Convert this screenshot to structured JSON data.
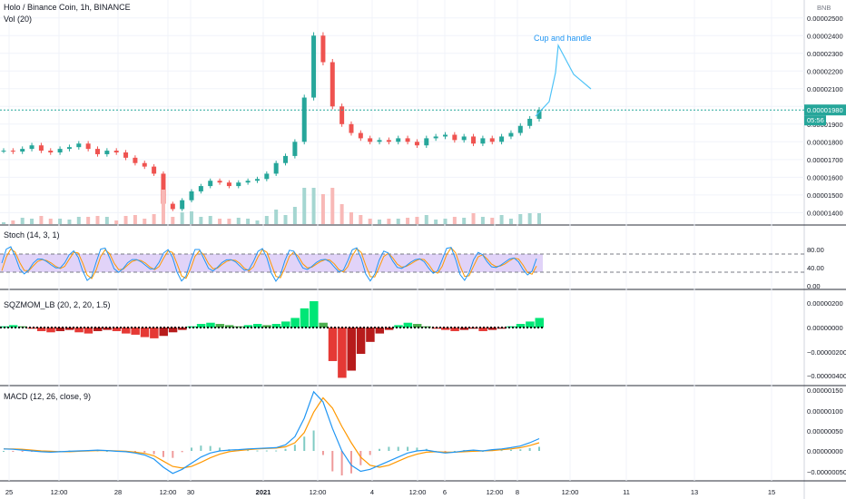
{
  "chart_data": {
    "type": "candlestick",
    "symbol_title": "Holo / Binance Coin, 1h, BINANCE",
    "volume_label": "Vol (20)",
    "quote_currency": "BNB",
    "price_axis": {
      "ticks": [
        "0.00002500",
        "0.00002400",
        "0.00002300",
        "0.00002200",
        "0.00002100",
        "0.00002000",
        "0.00001900",
        "0.00001800",
        "0.00001700",
        "0.00001600",
        "0.00001500",
        "0.00001400"
      ],
      "current_price": "0.00001980",
      "countdown": "05:56"
    },
    "annotation": {
      "text": "Cup and handle",
      "color": "#2196f3"
    },
    "close_series": [
      1.75e-05,
      1.745e-05,
      1.76e-05,
      1.78e-05,
      1.75e-05,
      1.74e-05,
      1.76e-05,
      1.77e-05,
      1.79e-05,
      1.76e-05,
      1.73e-05,
      1.75e-05,
      1.74e-05,
      1.71e-05,
      1.68e-05,
      1.66e-05,
      1.62e-05,
      1.45e-05,
      1.42e-05,
      1.47e-05,
      1.52e-05,
      1.55e-05,
      1.58e-05,
      1.57e-05,
      1.55e-05,
      1.57e-05,
      1.58e-05,
      1.59e-05,
      1.62e-05,
      1.68e-05,
      1.72e-05,
      1.8e-05,
      2.05e-05,
      2.4e-05,
      2.25e-05,
      2e-05,
      1.9e-05,
      1.85e-05,
      1.82e-05,
      1.8e-05,
      1.81e-05,
      1.8e-05,
      1.82e-05,
      1.8e-05,
      1.78e-05,
      1.82e-05,
      1.83e-05,
      1.84e-05,
      1.81e-05,
      1.83e-05,
      1.79e-05,
      1.82e-05,
      1.8e-05,
      1.83e-05,
      1.85e-05,
      1.89e-05,
      1.93e-05,
      1.98e-05
    ],
    "stoch": {
      "label": "Stoch (14, 3, 1)",
      "ticks": [
        "80.00",
        "40.00",
        "0.00"
      ],
      "band": [
        30,
        70
      ]
    },
    "sqzmom": {
      "label": "SQZMOM_LB (20, 2, 20, 1.5)",
      "ticks": [
        "0.00000200",
        "0.00000000",
        "−0.00000200",
        "−0.00000400"
      ],
      "values": [
        0.1,
        0.2,
        0.1,
        -0.1,
        -0.3,
        -0.4,
        -0.3,
        -0.2,
        -0.4,
        -0.5,
        -0.3,
        -0.2,
        -0.3,
        -0.5,
        -0.6,
        -0.8,
        -0.9,
        -0.7,
        -0.4,
        -0.2,
        0.1,
        0.3,
        0.4,
        0.3,
        0.2,
        0.1,
        0.2,
        0.3,
        0.2,
        0.3,
        0.5,
        0.8,
        1.6,
        2.2,
        0.4,
        -2.8,
        -4.2,
        -3.6,
        -2.2,
        -1.2,
        -0.5,
        -0.2,
        0.2,
        0.4,
        0.3,
        0.1,
        -0.1,
        -0.2,
        -0.3,
        -0.2,
        -0.1,
        -0.3,
        -0.2,
        -0.1,
        0.1,
        0.3,
        0.5,
        0.8
      ]
    },
    "macd": {
      "label": "MACD (12, 26, close, 9)",
      "ticks": [
        "0.00000150",
        "0.00000100",
        "0.00000050",
        "0.00000000",
        "−0.00000050"
      ],
      "macd_line": [
        0.05,
        0.04,
        0.02,
        0.0,
        -0.02,
        -0.03,
        -0.02,
        -0.01,
        0.0,
        0.01,
        0.02,
        0.01,
        -0.01,
        -0.02,
        -0.05,
        -0.1,
        -0.2,
        -0.4,
        -0.55,
        -0.45,
        -0.3,
        -0.15,
        -0.05,
        0.0,
        0.02,
        0.03,
        0.05,
        0.06,
        0.07,
        0.08,
        0.15,
        0.35,
        0.8,
        1.45,
        1.2,
        0.55,
        0.0,
        -0.35,
        -0.5,
        -0.45,
        -0.35,
        -0.25,
        -0.15,
        -0.05,
        0.0,
        0.02,
        -0.02,
        -0.05,
        -0.03,
        0.0,
        0.02,
        0.0,
        0.03,
        0.05,
        0.08,
        0.12,
        0.2,
        0.3
      ],
      "signal_line": [
        0.05,
        0.05,
        0.04,
        0.02,
        0.0,
        -0.01,
        -0.02,
        -0.02,
        -0.01,
        0.0,
        0.01,
        0.01,
        0.0,
        -0.01,
        -0.03,
        -0.06,
        -0.12,
        -0.25,
        -0.38,
        -0.42,
        -0.38,
        -0.28,
        -0.17,
        -0.08,
        -0.02,
        0.01,
        0.03,
        0.05,
        0.06,
        0.07,
        0.1,
        0.2,
        0.45,
        0.95,
        1.3,
        1.05,
        0.6,
        0.2,
        -0.15,
        -0.35,
        -0.4,
        -0.35,
        -0.25,
        -0.15,
        -0.08,
        -0.03,
        -0.02,
        -0.03,
        -0.03,
        -0.02,
        -0.01,
        0.0,
        0.01,
        0.03,
        0.05,
        0.08,
        0.13,
        0.2
      ]
    },
    "time_axis": [
      "25",
      "12:00",
      "28",
      "12:00",
      "30",
      "2021",
      "12:00",
      "4",
      "12:00",
      "6",
      "12:00",
      "8",
      "12:00",
      "11",
      "13",
      "15"
    ]
  }
}
